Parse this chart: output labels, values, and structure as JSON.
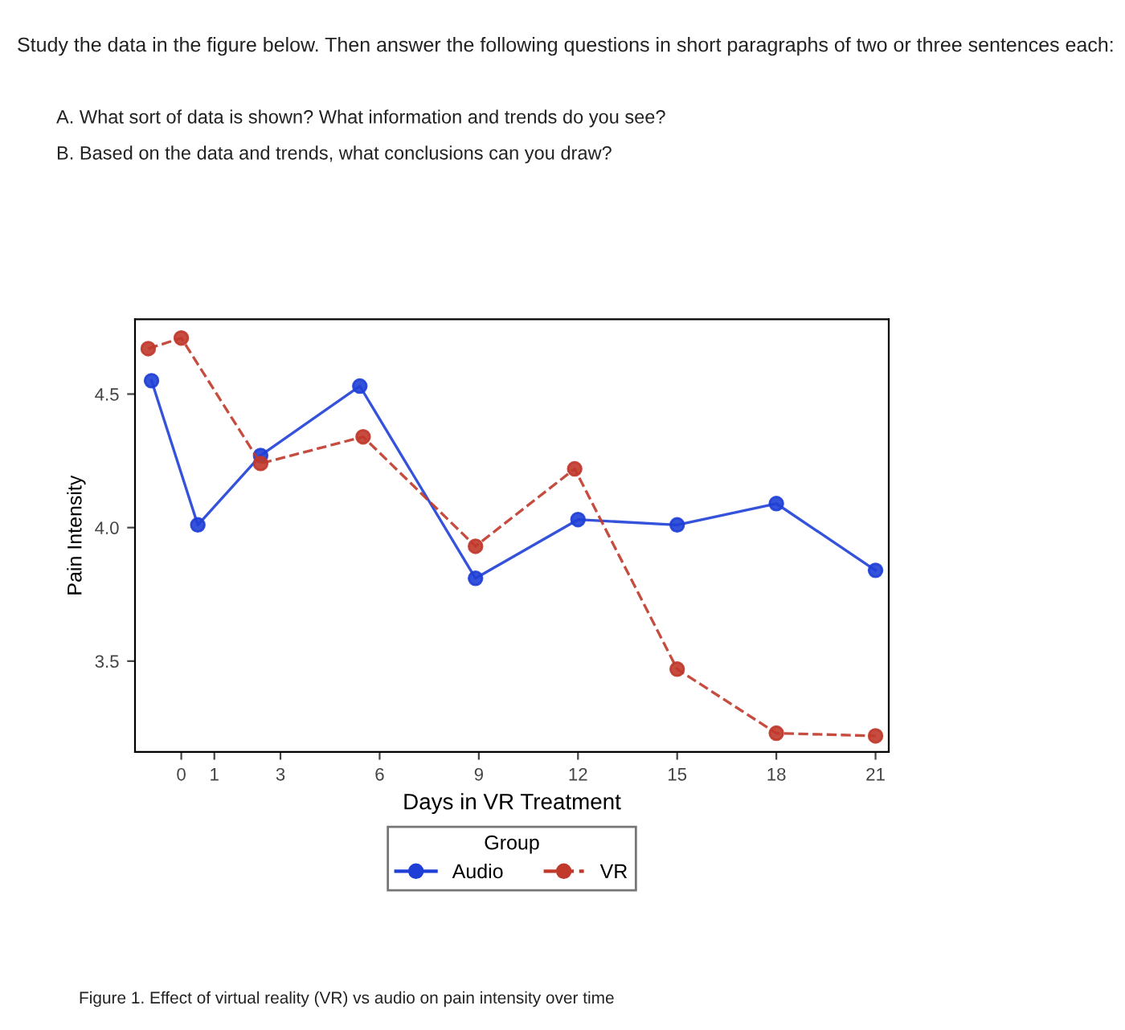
{
  "chart_data": {
    "type": "line",
    "xlabel": "Days in VR Treatment",
    "ylabel": "Pain Intensity",
    "legend_title": "Group",
    "legend": "bottom",
    "marker": "circle",
    "grid": false,
    "xlim": [
      -1.4,
      21.4
    ],
    "xticks": [
      0,
      1,
      3,
      6,
      9,
      12,
      15,
      18,
      21
    ],
    "ylim": [
      3.16,
      4.78
    ],
    "yticks": [
      3.5,
      {
        "value": 4.0,
        "label": "4.0"
      },
      4.5
    ],
    "series": [
      {
        "name": "Audio",
        "color": "#1f3fd6",
        "line_style": "solid",
        "x": [
          -0.9,
          0.5,
          2.4,
          5.4,
          8.9,
          12,
          15,
          18,
          21
        ],
        "values": [
          4.55,
          4.01,
          4.27,
          4.53,
          3.81,
          4.03,
          4.01,
          4.09,
          3.84
        ]
      },
      {
        "name": "VR",
        "color": "#c0392b",
        "line_style": "dashed",
        "x": [
          -1,
          0,
          2.4,
          5.5,
          8.9,
          11.9,
          15,
          18,
          21
        ],
        "values": [
          4.67,
          4.71,
          4.24,
          4.34,
          3.93,
          4.22,
          3.47,
          3.23,
          3.22
        ]
      }
    ],
    "annotations": [
      "Study the data in the figure below. Then answer the following questions in short paragraphs of two or three sentences each:",
      "A. What sort of data is shown? What information and trends do you see?",
      "B. Based on the data and trends, what conclusions can you draw?",
      "Figure 1. Effect of virtual reality (VR) vs audio on pain intensity over time"
    ]
  }
}
